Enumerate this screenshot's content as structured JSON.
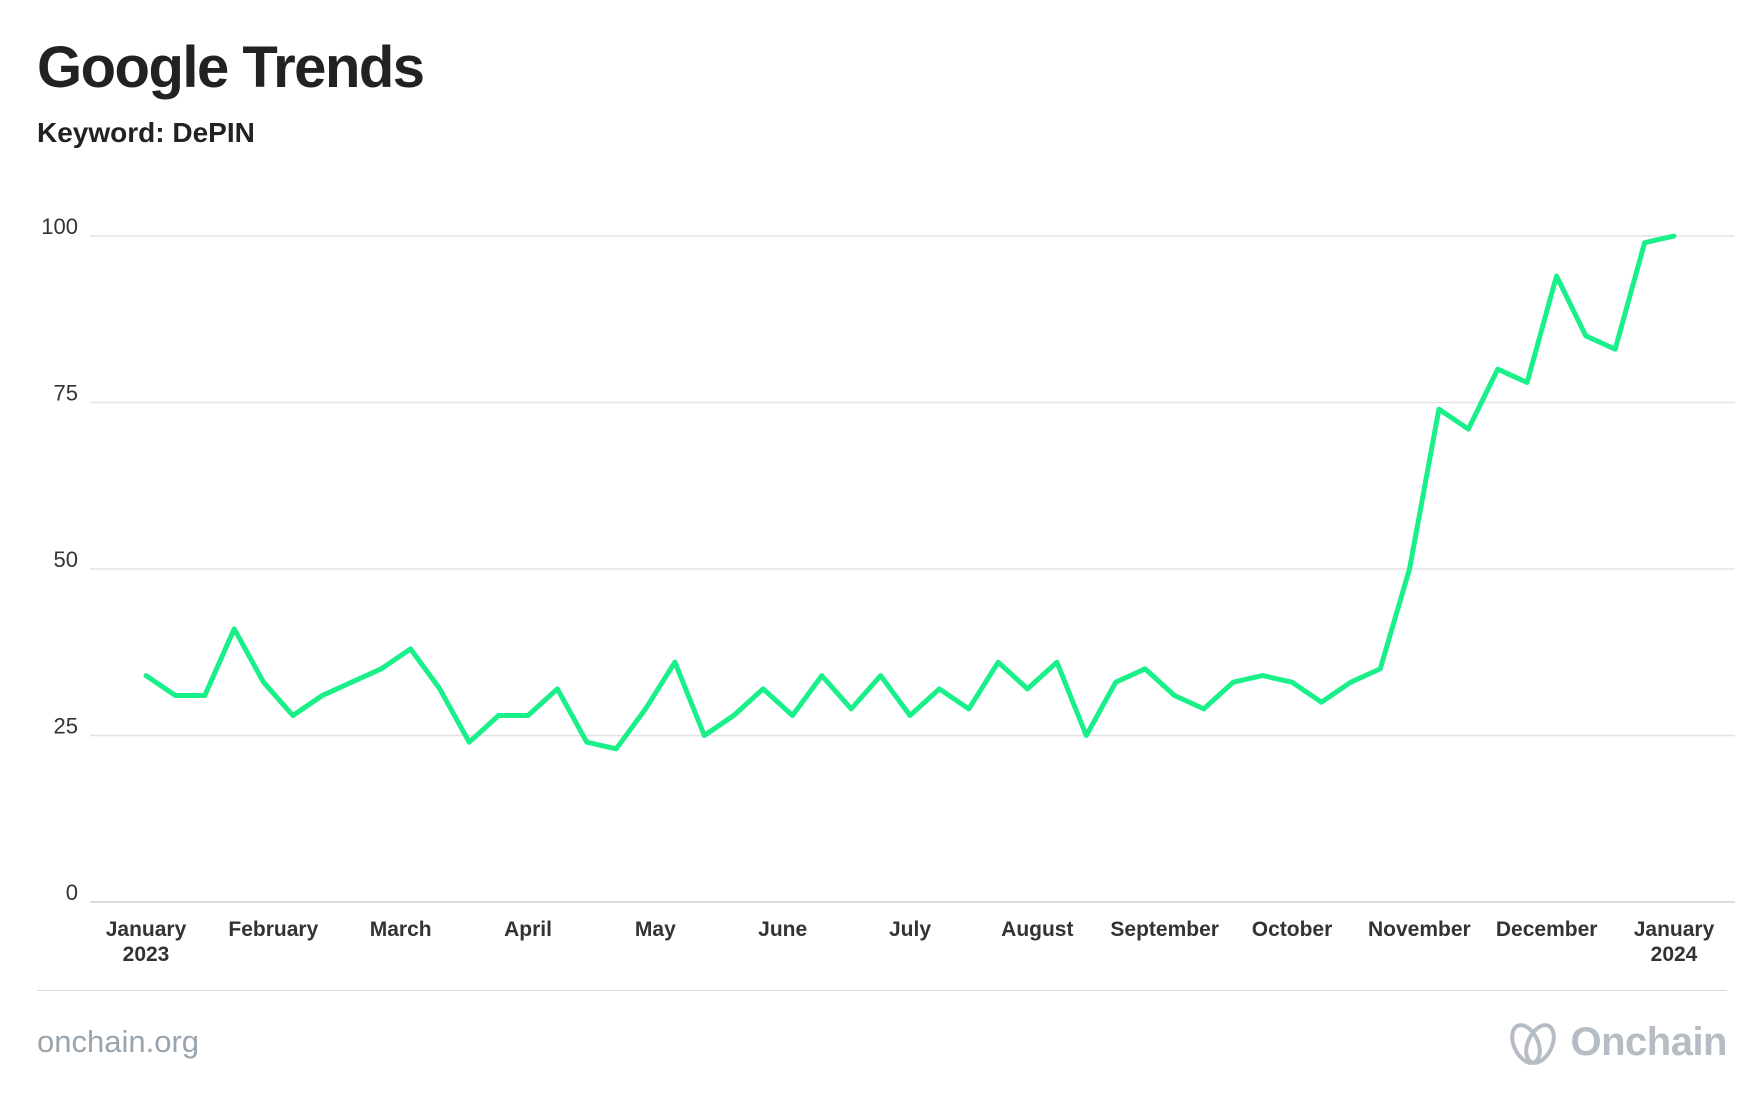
{
  "header": {
    "title": "Google Trends",
    "subtitle": "Keyword: DePIN"
  },
  "footer": {
    "site": "onchain.org",
    "brand": "Onchain",
    "brand_icon": "onchain-logo-icon"
  },
  "colors": {
    "line": "#19f08a",
    "grid": "#e3e3e3",
    "axis_text": "#333333",
    "footer_text": "#9aa4ad"
  },
  "chart_data": {
    "type": "line",
    "title": "Google Trends",
    "subtitle": "Keyword: DePIN",
    "xlabel": "",
    "ylabel": "",
    "ylim": [
      0,
      100
    ],
    "yticks": [
      0,
      25,
      50,
      75,
      100
    ],
    "grid": true,
    "xtick_labels": [
      [
        "January",
        "2023"
      ],
      [
        "February"
      ],
      [
        "March"
      ],
      [
        "April"
      ],
      [
        "May"
      ],
      [
        "June"
      ],
      [
        "July"
      ],
      [
        "August"
      ],
      [
        "September"
      ],
      [
        "October"
      ],
      [
        "November"
      ],
      [
        "December"
      ],
      [
        "January",
        "2024"
      ]
    ],
    "series": [
      {
        "values": [
          34,
          31,
          31,
          41,
          33,
          28,
          31,
          33,
          35,
          38,
          32,
          24,
          28,
          28,
          32,
          24,
          23,
          29,
          36,
          25,
          28,
          32,
          28,
          34,
          29,
          34,
          28,
          32,
          29,
          36,
          32,
          36,
          25,
          33,
          35,
          31,
          29,
          33,
          34,
          33,
          30,
          33,
          35,
          50,
          74,
          71,
          80,
          78,
          94,
          85,
          83,
          99,
          100
        ]
      }
    ]
  }
}
